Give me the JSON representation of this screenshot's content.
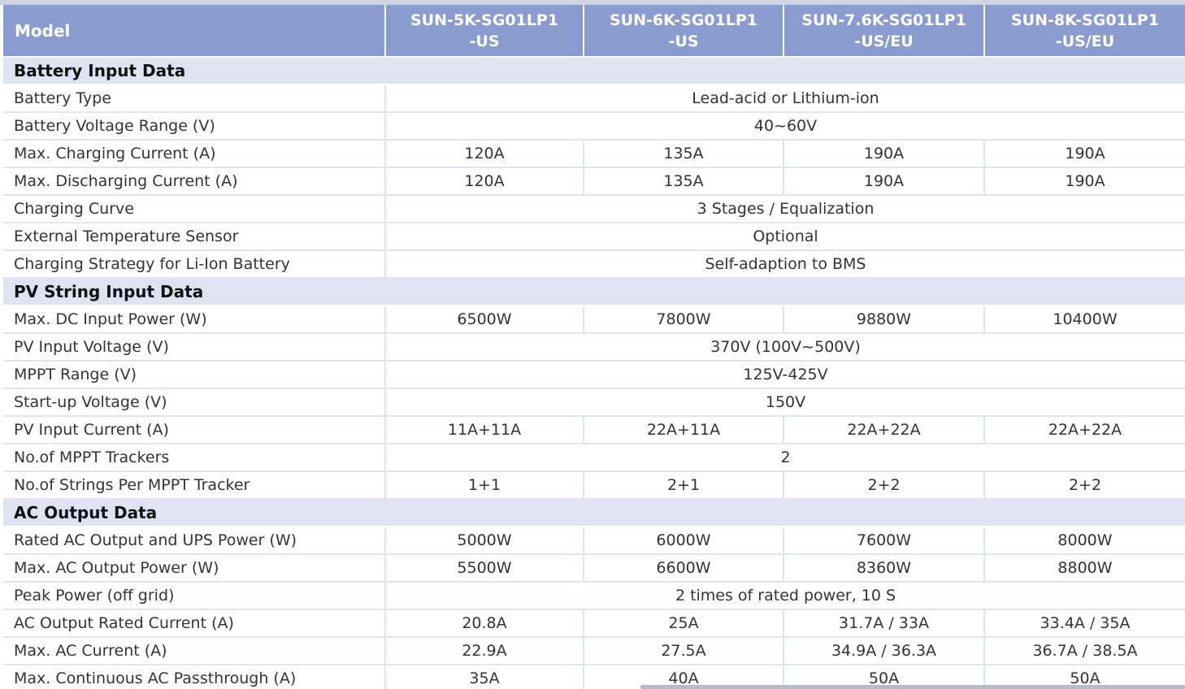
{
  "header": {
    "model_label": "Model",
    "models": [
      [
        "SUN-5K-SG01LP1",
        "-US"
      ],
      [
        "SUN-6K-SG01LP1",
        "-US"
      ],
      [
        "SUN-7.6K-SG01LP1",
        "-US/EU"
      ],
      [
        "SUN-8K-SG01LP1",
        "-US/EU"
      ]
    ]
  },
  "rows": [
    {
      "type": "section",
      "label": "Battery Input Data"
    },
    {
      "type": "span",
      "label": "Battery Type",
      "value": "Lead-acid or Lithium-ion"
    },
    {
      "type": "span",
      "label": "Battery Voltage Range (V)",
      "value": "40~60V"
    },
    {
      "type": "values",
      "label": "Max. Charging Current (A)",
      "values": [
        "120A",
        "135A",
        "190A",
        "190A"
      ]
    },
    {
      "type": "values",
      "label": "Max. Discharging Current (A)",
      "values": [
        "120A",
        "135A",
        "190A",
        "190A"
      ]
    },
    {
      "type": "span",
      "label": "Charging Curve",
      "value": "3 Stages / Equalization"
    },
    {
      "type": "span",
      "label": "External Temperature Sensor",
      "value": "Optional"
    },
    {
      "type": "span",
      "label": "Charging Strategy for Li-Ion Battery",
      "value": "Self-adaption to BMS"
    },
    {
      "type": "section",
      "label": "PV String Input Data"
    },
    {
      "type": "values",
      "label": "Max. DC Input Power (W)",
      "values": [
        "6500W",
        "7800W",
        "9880W",
        "10400W"
      ]
    },
    {
      "type": "span",
      "label": "PV Input Voltage (V)",
      "value": "370V (100V~500V)"
    },
    {
      "type": "span",
      "label": "MPPT Range (V)",
      "value": "125V-425V"
    },
    {
      "type": "span",
      "label": "Start-up Voltage (V)",
      "value": "150V"
    },
    {
      "type": "values",
      "label": "PV Input Current (A)",
      "values": [
        "11A+11A",
        "22A+11A",
        "22A+22A",
        "22A+22A"
      ]
    },
    {
      "type": "span",
      "label": "No.of MPPT Trackers",
      "value": "2"
    },
    {
      "type": "values",
      "label": "No.of Strings Per MPPT Tracker",
      "values": [
        "1+1",
        "2+1",
        "2+2",
        "2+2"
      ]
    },
    {
      "type": "section",
      "label": "AC Output Data"
    },
    {
      "type": "values",
      "label": "Rated AC Output and UPS Power (W)",
      "values": [
        "5000W",
        "6000W",
        "7600W",
        "8000W"
      ]
    },
    {
      "type": "values",
      "label": "Max. AC Output Power (W)",
      "values": [
        "5500W",
        "6600W",
        "8360W",
        "8800W"
      ]
    },
    {
      "type": "span",
      "label": "Peak Power (off grid)",
      "value": "2 times of rated power, 10 S"
    },
    {
      "type": "values",
      "label": "AC Output Rated Current (A)",
      "values": [
        "20.8A",
        "25A",
        "31.7A / 33A",
        "33.4A / 35A"
      ]
    },
    {
      "type": "values",
      "label": "Max. AC Current (A)",
      "values": [
        "22.9A",
        "27.5A",
        "34.9A / 36.3A",
        "36.7A / 38.5A"
      ]
    },
    {
      "type": "values",
      "label": "Max. Continuous AC Passthrough (A)",
      "values": [
        "35A",
        "40A",
        "50A",
        "50A"
      ]
    }
  ]
}
